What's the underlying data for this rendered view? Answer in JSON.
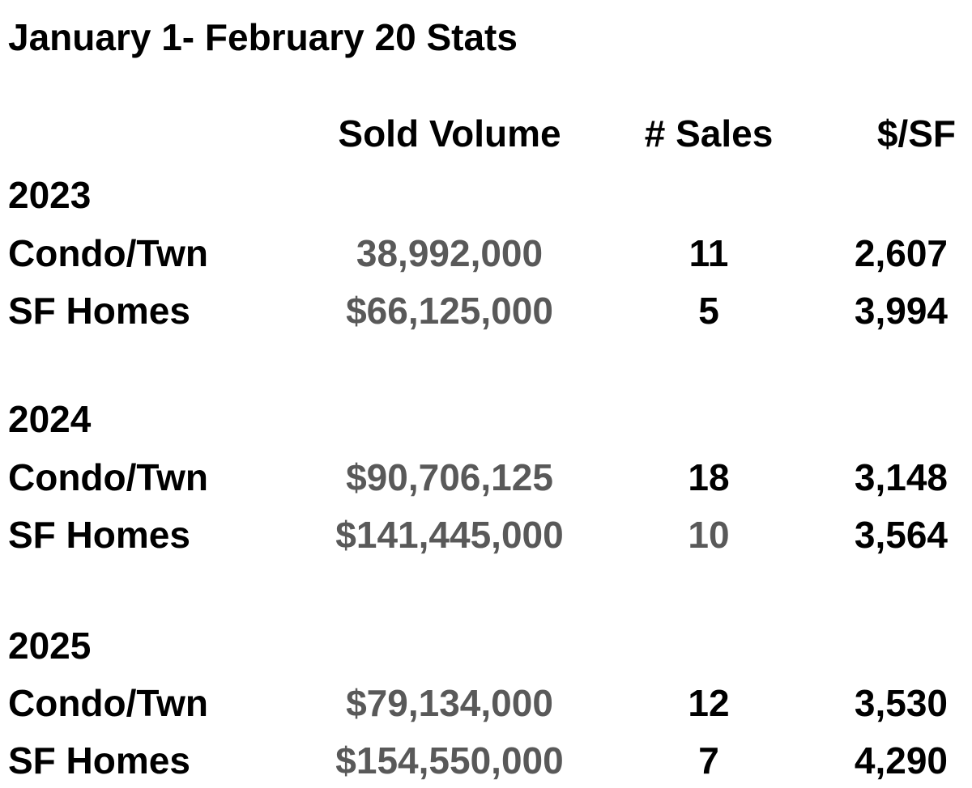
{
  "title": "January 1- February 20 Stats",
  "headers": {
    "sold_volume": "Sold Volume",
    "sales": "# Sales",
    "price_per_sf": "$/SF"
  },
  "groups": [
    {
      "year": "2023",
      "rows": [
        {
          "label": "Condo/Twn",
          "sold_volume": "38,992,000",
          "sales": "11",
          "price_per_sf": "2,607"
        },
        {
          "label": "SF Homes",
          "sold_volume": "$66,125,000",
          "sales": "5",
          "price_per_sf": "3,994"
        }
      ]
    },
    {
      "year": "2024",
      "rows": [
        {
          "label": "Condo/Twn",
          "sold_volume": "$90,706,125",
          "sales": "18",
          "price_per_sf": "3,148"
        },
        {
          "label": "SF Homes",
          "sold_volume": "$141,445,000",
          "sales": "10",
          "price_per_sf": "3,564"
        }
      ]
    },
    {
      "year": "2025",
      "rows": [
        {
          "label": "Condo/Twn",
          "sold_volume": "$79,134,000",
          "sales": "12",
          "price_per_sf": "3,530"
        },
        {
          "label": "SF Homes",
          "sold_volume": "$154,550,000",
          "sales": "7",
          "price_per_sf": "4,290"
        }
      ]
    }
  ],
  "colors": {
    "text": "#000000",
    "volume_text": "#595959",
    "sales_gray": "#595959"
  }
}
